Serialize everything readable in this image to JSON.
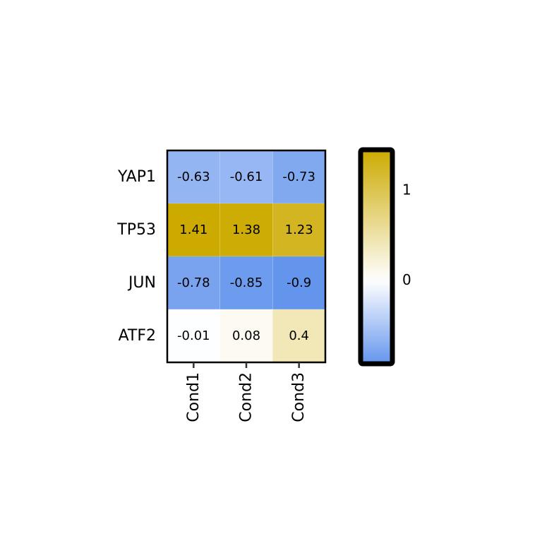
{
  "chart_data": {
    "type": "heatmap",
    "rows": [
      "YAP1",
      "TP53",
      "JUN",
      "ATF2"
    ],
    "columns": [
      "Cond1",
      "Cond2",
      "Cond3"
    ],
    "values": [
      [
        -0.63,
        -0.61,
        -0.73
      ],
      [
        1.41,
        1.38,
        1.23
      ],
      [
        -0.78,
        -0.85,
        -0.9
      ],
      [
        -0.01,
        0.08,
        0.4
      ]
    ],
    "cell_labels": [
      [
        "-0.63",
        "-0.61",
        "-0.73"
      ],
      [
        "1.41",
        "1.38",
        "1.23"
      ],
      [
        "-0.78",
        "-0.85",
        "-0.9"
      ],
      [
        "-0.01",
        "0.08",
        "0.4"
      ]
    ],
    "colorbar": {
      "range": [
        -0.9,
        1.41
      ],
      "ticks": [
        0,
        1
      ],
      "tick_labels": [
        "0",
        "1"
      ],
      "colors": {
        "low": "#6495ED",
        "mid": "#FFFFFF",
        "high": "#CCAA00"
      }
    },
    "title": "",
    "xlabel": "",
    "ylabel": "",
    "legend": "colorbar-right"
  }
}
